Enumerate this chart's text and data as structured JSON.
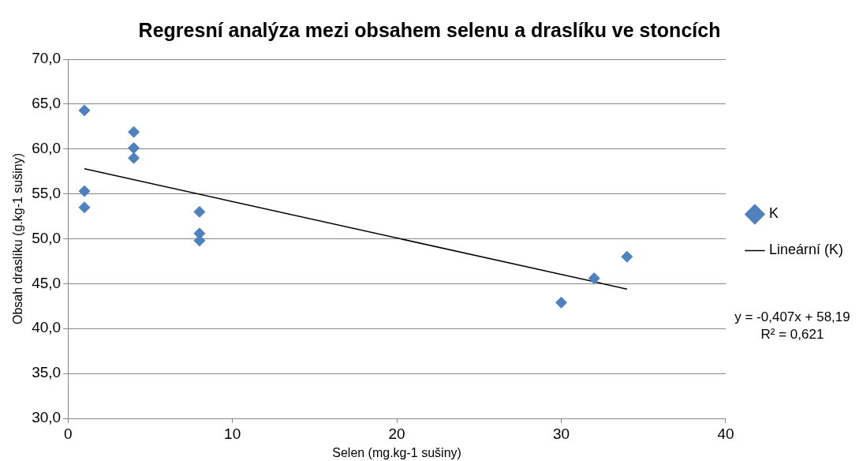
{
  "chart_data": {
    "type": "scatter",
    "title": "Regresní analýza mezi obsahem selenu a draslíku ve stoncích",
    "xlabel": "Selen (mg.kg-1 sušiny)",
    "ylabel": "Obsah draslíku (g.kg-1 sušiny)",
    "series": [
      {
        "name": "K",
        "color": "#4f81bd",
        "marker": "diamond",
        "x": [
          1,
          1,
          1,
          4,
          4,
          4,
          8,
          8,
          8,
          30,
          32,
          34
        ],
        "values": [
          64.3,
          55.3,
          53.5,
          61.9,
          60.1,
          59.0,
          53.0,
          50.6,
          49.8,
          42.9,
          45.6,
          48.0
        ]
      },
      {
        "name": "Lineární (K)",
        "type": "line",
        "color": "#000000",
        "marker": "none",
        "x": [
          1,
          34
        ],
        "values": [
          57.8,
          44.4
        ]
      }
    ],
    "xlim": [
      0,
      40
    ],
    "xticks": [
      0,
      10,
      20,
      30,
      40
    ],
    "ylim": [
      30,
      70
    ],
    "yticks": [
      {
        "value": 30,
        "label": "30,0"
      },
      {
        "value": 35,
        "label": "35,0"
      },
      {
        "value": 40,
        "label": "40,0"
      },
      {
        "value": 45,
        "label": "45,0"
      },
      {
        "value": 50,
        "label": "50,0"
      },
      {
        "value": 55,
        "label": "55,0"
      },
      {
        "value": 60,
        "label": "60,0"
      },
      {
        "value": 65,
        "label": "65,0"
      },
      {
        "value": 70,
        "label": "70,0"
      }
    ],
    "grid": "y",
    "legend": "right",
    "annotations": [
      "y = -0,407x + 58,19",
      "R² = 0,621"
    ]
  }
}
